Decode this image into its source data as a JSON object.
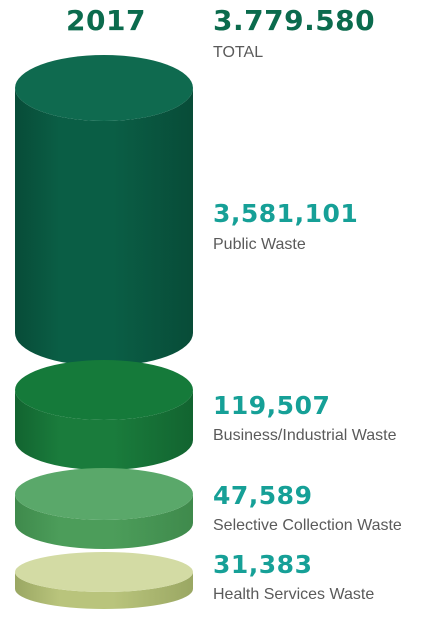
{
  "header": {
    "year": "2017",
    "total_value": "3.779.580",
    "total_label": "TOTAL"
  },
  "chart_data": {
    "type": "bar",
    "title": "",
    "categories": [
      "Public Waste",
      "Business/Industrial Waste",
      "Selective Collection Waste",
      "Health Services Waste"
    ],
    "values": [
      3581101,
      119507,
      47589,
      31383
    ],
    "value_labels": [
      "3,581,101",
      "119,507",
      "47,589",
      "31,383"
    ],
    "colors": {
      "public": {
        "top": "#0f6a4f",
        "body": "#0a5e45",
        "edge": "#084c38"
      },
      "business": {
        "top": "#157a3a",
        "body": "#1a7c3c",
        "edge": "#126430"
      },
      "selective": {
        "top": "#5aa86a",
        "body": "#4c9d5a",
        "edge": "#3f8a4c"
      },
      "health": {
        "top": "#d3dba4",
        "body": "#b9c47c",
        "edge": "#9aa763"
      }
    },
    "value_color": "#16a097",
    "total_color": "#0b6b4d"
  }
}
